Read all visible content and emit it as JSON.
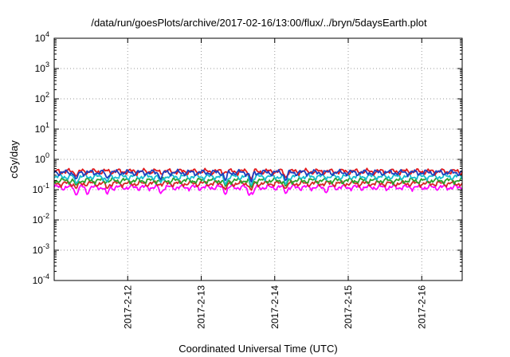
{
  "chart_data": {
    "type": "line",
    "title": "/data/run/goesPlots/archive/2017-02-16/13:00/flux/../bryn/5daysEarth.plot",
    "xlabel": "Coordinated Universal Time (UTC)",
    "ylabel": "cGy/day",
    "yscale": "log",
    "ylim": [
      0.0001,
      10000
    ],
    "xlim": [
      0.0,
      5.55
    ],
    "grid": true,
    "legend": "none",
    "y_ticks": [
      {
        "base": "10",
        "exp": "-4"
      },
      {
        "base": "10",
        "exp": "-3"
      },
      {
        "base": "10",
        "exp": "-2"
      },
      {
        "base": "10",
        "exp": "-1"
      },
      {
        "base": "10",
        "exp": "0"
      },
      {
        "base": "10",
        "exp": "1"
      },
      {
        "base": "10",
        "exp": "2"
      },
      {
        "base": "10",
        "exp": "3"
      },
      {
        "base": "10",
        "exp": "4"
      }
    ],
    "x_ticks": [
      {
        "x": 1.0,
        "label": "2017-2-12"
      },
      {
        "x": 2.0,
        "label": "2017-2-13"
      },
      {
        "x": 3.0,
        "label": "2017-2-14"
      },
      {
        "x": 4.0,
        "label": "2017-2-15"
      },
      {
        "x": 5.0,
        "label": "2017-2-16"
      }
    ],
    "series": [
      {
        "color": "#ff00ff",
        "base": 0.12,
        "dips": [
          [
            0.3,
            0.065
          ],
          [
            0.45,
            0.07
          ],
          [
            0.72,
            0.07
          ],
          [
            1.45,
            0.075
          ],
          [
            2.33,
            0.07
          ],
          [
            2.65,
            0.065
          ],
          [
            2.7,
            0.07
          ],
          [
            3.15,
            0.075
          ],
          [
            3.7,
            0.08
          ]
        ]
      },
      {
        "color": "#d62728",
        "base": 0.16,
        "dips": [
          [
            0.3,
            0.11
          ],
          [
            0.72,
            0.11
          ],
          [
            2.33,
            0.1
          ],
          [
            2.68,
            0.095
          ],
          [
            3.15,
            0.11
          ]
        ]
      },
      {
        "color": "#2ca02c",
        "base": 0.2,
        "dips": [
          [
            0.3,
            0.14
          ],
          [
            2.33,
            0.13
          ],
          [
            2.68,
            0.12
          ],
          [
            3.15,
            0.13
          ]
        ]
      },
      {
        "color": "#17becf",
        "base": 0.27,
        "dips": [
          [
            0.3,
            0.16
          ],
          [
            0.72,
            0.18
          ],
          [
            1.45,
            0.17
          ],
          [
            2.33,
            0.15
          ],
          [
            2.68,
            0.14
          ],
          [
            3.15,
            0.15
          ]
        ]
      },
      {
        "color": "#e31a1c",
        "base": 0.4,
        "dips": [
          [
            0.3,
            0.28
          ],
          [
            2.68,
            0.22
          ],
          [
            3.15,
            0.25
          ]
        ]
      },
      {
        "color": "#1f3fbf",
        "base": 0.37,
        "dips": [
          [
            0.3,
            0.22
          ],
          [
            0.72,
            0.24
          ],
          [
            1.45,
            0.22
          ],
          [
            2.33,
            0.2
          ],
          [
            2.68,
            0.18
          ],
          [
            3.15,
            0.2
          ]
        ]
      }
    ]
  }
}
